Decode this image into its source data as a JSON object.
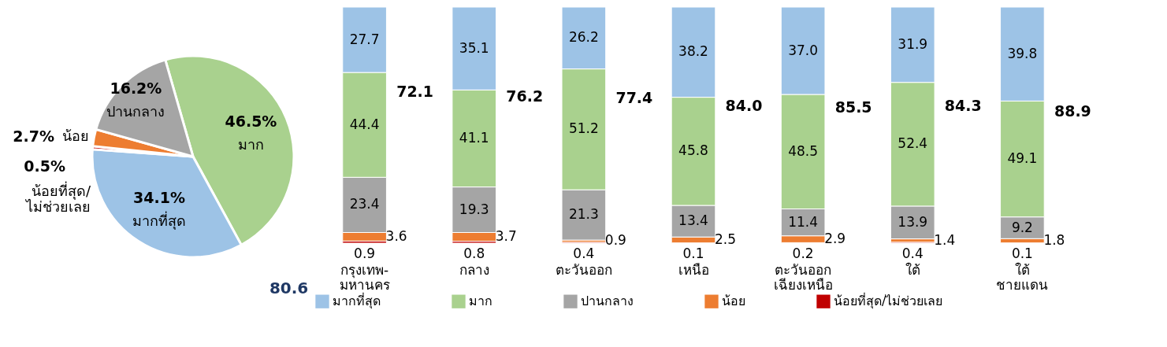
{
  "chart_data": [
    {
      "type": "pie",
      "categories": [
        "มาก",
        "มากที่สุด",
        "น้อยที่สุด/ไม่ช่วยเลย",
        "น้อย",
        "ปานกลาง"
      ],
      "values": [
        46.5,
        34.1,
        0.5,
        2.7,
        16.2
      ],
      "colors": [
        "#a9d18e",
        "#9dc3e6",
        "#c00000",
        "#ed7d31",
        "#a5a5a5"
      ],
      "value_labels": [
        "46.5%",
        "34.1%",
        "0.5%",
        "2.7%",
        "16.2%"
      ],
      "annotations": [
        "80.6"
      ]
    },
    {
      "type": "bar",
      "stacked": true,
      "data_labels": true,
      "legend": "bottom",
      "tick_labels": "x",
      "categories": [
        "กรุงเทพ-\nมหานคร",
        "กลาง",
        "ตะวันออก",
        "เหนือ",
        "ตะวันออก\nเฉียงเหนือ",
        "ใต้",
        "ใต้\nชายแดน"
      ],
      "series": [
        {
          "name": "น้อยที่สุด/ไม่ช่วยเลย",
          "color": "#c00000",
          "values": [
            0.9,
            0.8,
            0.4,
            0.1,
            0.2,
            0.4,
            0.1
          ],
          "value_labels": [
            "0.9",
            "0.8",
            "0.4",
            "0.1",
            "0.2",
            "0.4",
            "0.1"
          ]
        },
        {
          "name": "น้อย",
          "color": "#ed7d31",
          "values": [
            3.6,
            3.7,
            0.9,
            2.5,
            2.9,
            1.4,
            1.8
          ],
          "value_labels": [
            "3.6",
            "3.7",
            "0.9",
            "2.5",
            "2.9",
            "1.4",
            "1.8"
          ]
        },
        {
          "name": "ปานกลาง",
          "color": "#a5a5a5",
          "values": [
            23.4,
            19.3,
            21.3,
            13.4,
            11.4,
            13.9,
            9.2
          ],
          "value_labels": [
            "23.4",
            "19.3",
            "21.3",
            "13.4",
            "11.4",
            "13.9",
            "9.2"
          ]
        },
        {
          "name": "มาก",
          "color": "#a9d18e",
          "values": [
            44.4,
            41.1,
            51.2,
            45.8,
            48.5,
            52.4,
            49.1
          ],
          "value_labels": [
            "44.4",
            "41.1",
            "51.2",
            "45.8",
            "48.5",
            "52.4",
            "49.1"
          ]
        },
        {
          "name": "มากที่สุด",
          "color": "#9dc3e6",
          "values": [
            27.7,
            35.1,
            26.2,
            38.2,
            37.0,
            31.9,
            39.8
          ],
          "value_labels": [
            "27.7",
            "35.1",
            "26.2",
            "38.2",
            "37.0",
            "31.9",
            "39.8"
          ]
        }
      ],
      "annotations": [
        "72.1",
        "76.2",
        "77.4",
        "84.0",
        "85.5",
        "84.3",
        "88.9"
      ]
    }
  ]
}
